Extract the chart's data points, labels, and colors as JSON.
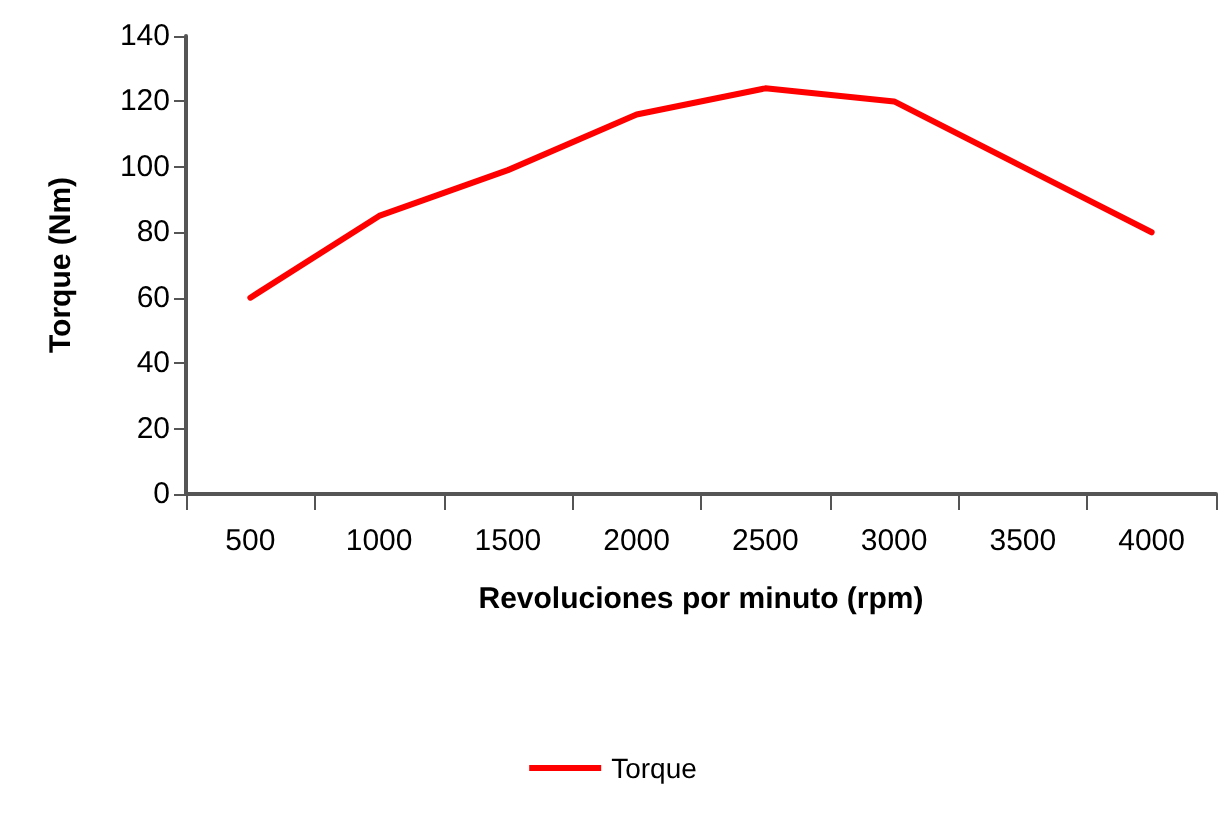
{
  "chart_data": {
    "type": "line",
    "xlabel": "Revoluciones por minuto (rpm)",
    "ylabel": "Torque (Nm)",
    "categories": [
      "500",
      "1000",
      "1500",
      "2000",
      "2500",
      "3000",
      "3500",
      "4000"
    ],
    "series": [
      {
        "name": "Torque",
        "color": "#ff0000",
        "values": [
          60,
          85,
          99,
          116,
          124,
          120,
          100,
          80
        ]
      }
    ],
    "ylim": [
      0,
      140
    ],
    "yticks": [
      0,
      20,
      40,
      60,
      80,
      100,
      120,
      140
    ],
    "grid": false,
    "legend": "bottom",
    "marker": "none",
    "line_style": "solid"
  }
}
